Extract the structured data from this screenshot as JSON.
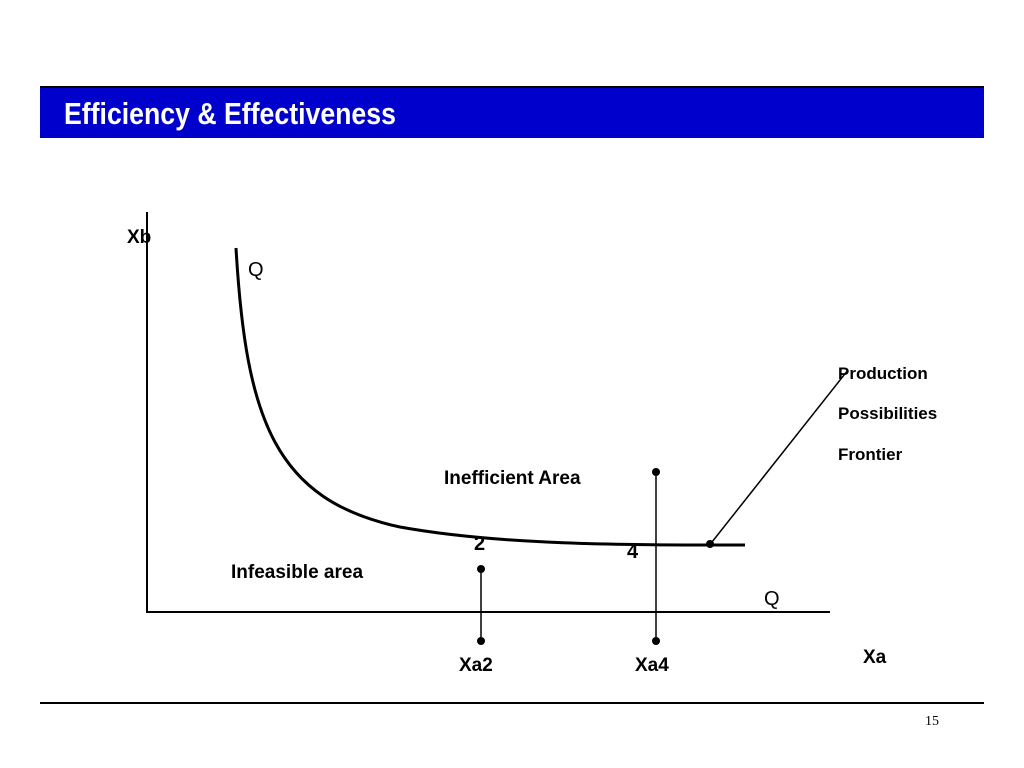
{
  "slide": {
    "title": "Efficiency & Effectiveness",
    "page_number": "15",
    "accent_color": "#0000cc"
  },
  "diagram": {
    "y_axis_label": "Xb",
    "x_axis_label": "Xa",
    "curve_label_top": "Q",
    "curve_label_bottom": "Q",
    "point_2_label": "2",
    "point_4_label": "4",
    "xa2_label": "Xa2",
    "xa4_label": "Xa4",
    "inefficient_area_label": "Inefficient Area",
    "infeasible_area_label": "Infeasible area",
    "frontier_callout": [
      "Production",
      "Possibilities",
      "Frontier"
    ]
  }
}
